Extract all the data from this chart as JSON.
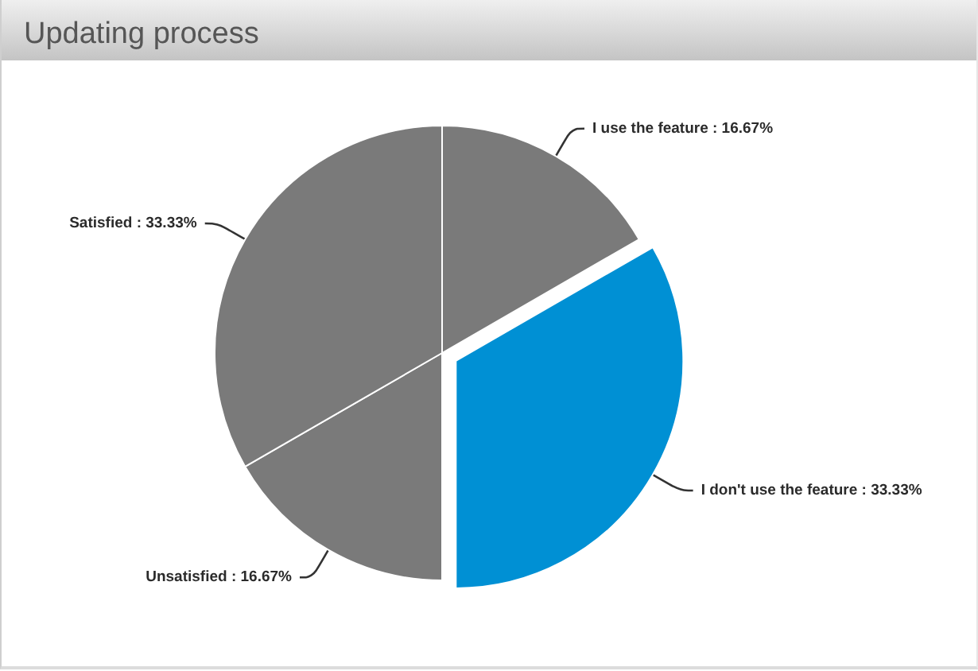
{
  "chart_data": {
    "type": "pie",
    "title": "Updating process",
    "categories": [
      "I use the feature",
      "I don't use the feature",
      "Unsatisfied",
      "Satisfied"
    ],
    "values": [
      16.67,
      33.33,
      16.67,
      33.33
    ],
    "colors": [
      "#7a7a7a",
      "#0090d4",
      "#7a7a7a",
      "#7a7a7a"
    ],
    "value_labels": [
      "16.67%",
      "33.33%",
      "16.67%",
      "33.33%"
    ]
  }
}
